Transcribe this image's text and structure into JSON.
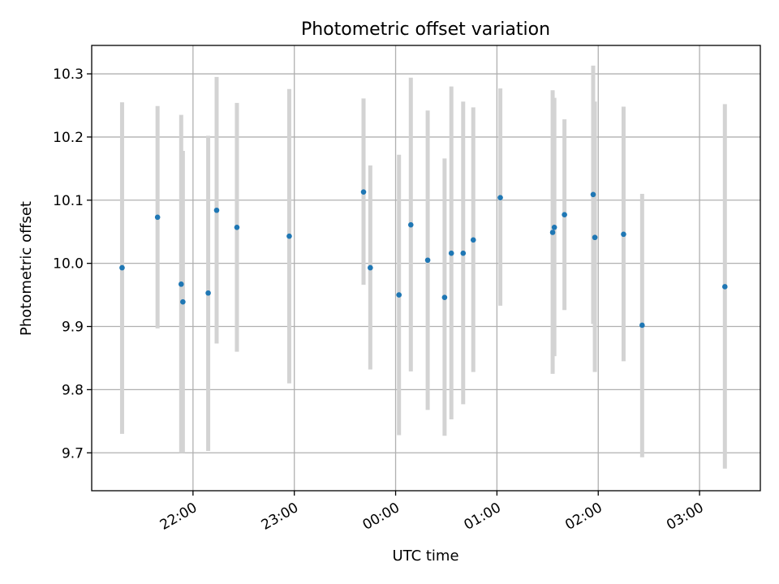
{
  "chart_data": {
    "type": "scatter",
    "title": "Photometric offset variation",
    "xlabel": "UTC time",
    "ylabel": "Photometric offset",
    "x_unit": "UTC time (HH:MM)",
    "xlim": [
      "21:00",
      "03:36"
    ],
    "ylim": [
      9.64,
      10.345
    ],
    "x_ticks": [
      "22:00",
      "23:00",
      "00:00",
      "01:00",
      "02:00",
      "03:00"
    ],
    "y_ticks": [
      9.7,
      9.8,
      9.9,
      10.0,
      10.1,
      10.2,
      10.3
    ],
    "grid": true,
    "colors": {
      "point": "#1f77b4",
      "errorbar": "#d3d3d3",
      "grid": "#b0b0b0"
    },
    "series": [
      {
        "points": [
          {
            "x": "21:18",
            "y": 9.993,
            "ylo": 9.73,
            "yhi": 10.255
          },
          {
            "x": "21:39",
            "y": 10.073,
            "ylo": 9.897,
            "yhi": 10.249
          },
          {
            "x": "21:53",
            "y": 9.967,
            "ylo": 9.7,
            "yhi": 10.235
          },
          {
            "x": "21:54",
            "y": 9.939,
            "ylo": 9.7,
            "yhi": 10.178
          },
          {
            "x": "22:09",
            "y": 9.953,
            "ylo": 9.703,
            "yhi": 10.202
          },
          {
            "x": "22:14",
            "y": 10.084,
            "ylo": 9.873,
            "yhi": 10.295
          },
          {
            "x": "22:26",
            "y": 10.057,
            "ylo": 9.86,
            "yhi": 10.254
          },
          {
            "x": "22:57",
            "y": 10.043,
            "ylo": 9.81,
            "yhi": 10.276
          },
          {
            "x": "23:41",
            "y": 10.113,
            "ylo": 9.966,
            "yhi": 10.261
          },
          {
            "x": "23:45",
            "y": 9.993,
            "ylo": 9.832,
            "yhi": 10.155
          },
          {
            "x": "00:02",
            "y": 9.95,
            "ylo": 9.728,
            "yhi": 10.172
          },
          {
            "x": "00:09",
            "y": 10.061,
            "ylo": 9.829,
            "yhi": 10.294
          },
          {
            "x": "00:19",
            "y": 10.005,
            "ylo": 9.768,
            "yhi": 10.242
          },
          {
            "x": "00:29",
            "y": 9.946,
            "ylo": 9.727,
            "yhi": 10.166
          },
          {
            "x": "00:33",
            "y": 10.016,
            "ylo": 9.753,
            "yhi": 10.28
          },
          {
            "x": "00:40",
            "y": 10.016,
            "ylo": 9.777,
            "yhi": 10.256
          },
          {
            "x": "00:46",
            "y": 10.037,
            "ylo": 9.828,
            "yhi": 10.247
          },
          {
            "x": "01:02",
            "y": 10.104,
            "ylo": 9.933,
            "yhi": 10.277
          },
          {
            "x": "01:33",
            "y": 10.049,
            "ylo": 9.825,
            "yhi": 10.274
          },
          {
            "x": "01:34",
            "y": 10.057,
            "ylo": 9.853,
            "yhi": 10.262
          },
          {
            "x": "01:40",
            "y": 10.077,
            "ylo": 9.926,
            "yhi": 10.228
          },
          {
            "x": "01:57",
            "y": 10.109,
            "ylo": 9.904,
            "yhi": 10.313
          },
          {
            "x": "01:58",
            "y": 10.041,
            "ylo": 9.828,
            "yhi": 10.256
          },
          {
            "x": "02:15",
            "y": 10.046,
            "ylo": 9.845,
            "yhi": 10.248
          },
          {
            "x": "02:26",
            "y": 9.902,
            "ylo": 9.693,
            "yhi": 10.11
          },
          {
            "x": "03:15",
            "y": 9.963,
            "ylo": 9.675,
            "yhi": 10.252
          }
        ]
      }
    ]
  }
}
